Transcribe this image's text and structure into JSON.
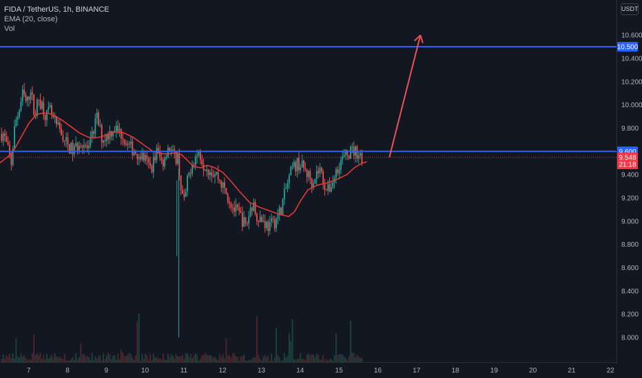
{
  "legend": {
    "symbol": "FIDA / TetherUS, 1h, BINANCE",
    "ema": "EMA (20, close)",
    "vol": "Vol"
  },
  "price_axis": {
    "currency": "USDT",
    "ticks": [
      "10.600",
      "10.400",
      "10.200",
      "10.000",
      "9.800",
      "9.400",
      "9.200",
      "9.000",
      "8.800",
      "8.600",
      "8.400",
      "8.200",
      "8.000"
    ],
    "labels": [
      {
        "text": "10.500",
        "color": "#2962ff"
      },
      {
        "text": "9.600",
        "color": "#2962ff"
      },
      {
        "text": "9.548",
        "countdown": "21:18",
        "color": "#f23645"
      }
    ]
  },
  "time_axis": {
    "ticks": [
      "7",
      "8",
      "9",
      "10",
      "11",
      "12",
      "13",
      "14",
      "15",
      "16",
      "17",
      "18",
      "19",
      "20",
      "21",
      "22"
    ]
  },
  "colors": {
    "background": "#131722",
    "up": "#26a69a",
    "down": "#ef5350",
    "ema": "#e53935",
    "hline": "#2962ff",
    "arrow": "#f0505a"
  },
  "chart_data": {
    "type": "candlestick",
    "symbol": "FIDA/USDT",
    "interval": "1h",
    "ylim": [
      7.93,
      10.74
    ],
    "x_ticks": [
      7,
      8,
      9,
      10,
      11,
      12,
      13,
      14,
      15,
      16,
      17,
      18,
      19,
      20,
      21,
      22
    ],
    "horizontal_lines": [
      10.5,
      9.6
    ],
    "last_price": 9.548,
    "arrow": {
      "from": [
        16.3,
        9.55
      ],
      "to": [
        17.1,
        10.6
      ]
    },
    "close_anchors": [
      [
        6.35,
        9.75
      ],
      [
        6.55,
        9.5
      ],
      [
        6.65,
        9.85
      ],
      [
        6.75,
        9.95
      ],
      [
        6.85,
        10.1
      ],
      [
        6.95,
        10.0
      ],
      [
        7.05,
        10.15
      ],
      [
        7.15,
        9.9
      ],
      [
        7.25,
        10.05
      ],
      [
        7.35,
        10.0
      ],
      [
        7.45,
        9.9
      ],
      [
        7.55,
        9.95
      ],
      [
        7.65,
        9.85
      ],
      [
        7.85,
        9.75
      ],
      [
        8.0,
        9.65
      ],
      [
        8.15,
        9.6
      ],
      [
        8.35,
        9.7
      ],
      [
        8.55,
        9.6
      ],
      [
        8.75,
        9.9
      ],
      [
        8.9,
        9.7
      ],
      [
        9.05,
        9.75
      ],
      [
        9.2,
        9.8
      ],
      [
        9.4,
        9.75
      ],
      [
        9.55,
        9.65
      ],
      [
        9.75,
        9.6
      ],
      [
        9.95,
        9.55
      ],
      [
        10.15,
        9.45
      ],
      [
        10.3,
        9.6
      ],
      [
        10.45,
        9.5
      ],
      [
        10.6,
        9.65
      ],
      [
        10.75,
        9.55
      ],
      [
        10.85,
        9.55
      ],
      [
        10.92,
        9.3
      ],
      [
        11.0,
        9.15
      ],
      [
        11.1,
        9.35
      ],
      [
        11.2,
        9.5
      ],
      [
        11.3,
        9.55
      ],
      [
        11.4,
        9.6
      ],
      [
        11.5,
        9.5
      ],
      [
        11.65,
        9.45
      ],
      [
        11.85,
        9.4
      ],
      [
        12.0,
        9.3
      ],
      [
        12.15,
        9.2
      ],
      [
        12.3,
        9.1
      ],
      [
        12.45,
        9.05
      ],
      [
        12.6,
        8.95
      ],
      [
        12.75,
        9.15
      ],
      [
        12.9,
        9.05
      ],
      [
        13.05,
        9.0
      ],
      [
        13.2,
        8.95
      ],
      [
        13.35,
        9.0
      ],
      [
        13.5,
        9.1
      ],
      [
        13.65,
        9.3
      ],
      [
        13.8,
        9.45
      ],
      [
        13.95,
        9.5
      ],
      [
        14.1,
        9.45
      ],
      [
        14.3,
        9.35
      ],
      [
        14.5,
        9.45
      ],
      [
        14.7,
        9.25
      ],
      [
        14.85,
        9.35
      ],
      [
        15.0,
        9.5
      ],
      [
        15.15,
        9.55
      ],
      [
        15.3,
        9.6
      ],
      [
        15.45,
        9.6
      ],
      [
        15.6,
        9.55
      ]
    ],
    "ema_anchors": [
      [
        6.25,
        9.5
      ],
      [
        6.45,
        9.55
      ],
      [
        6.6,
        9.6
      ],
      [
        6.8,
        9.72
      ],
      [
        7.0,
        9.84
      ],
      [
        7.2,
        9.92
      ],
      [
        7.4,
        9.93
      ],
      [
        7.6,
        9.92
      ],
      [
        7.85,
        9.87
      ],
      [
        8.1,
        9.81
      ],
      [
        8.3,
        9.76
      ],
      [
        8.55,
        9.72
      ],
      [
        8.8,
        9.72
      ],
      [
        9.0,
        9.74
      ],
      [
        9.2,
        9.77
      ],
      [
        9.45,
        9.76
      ],
      [
        9.7,
        9.72
      ],
      [
        9.95,
        9.66
      ],
      [
        10.2,
        9.6
      ],
      [
        10.45,
        9.58
      ],
      [
        10.65,
        9.58
      ],
      [
        10.8,
        9.59
      ],
      [
        10.95,
        9.57
      ],
      [
        11.1,
        9.52
      ],
      [
        11.25,
        9.47
      ],
      [
        11.45,
        9.46
      ],
      [
        11.6,
        9.48
      ],
      [
        11.8,
        9.46
      ],
      [
        12.0,
        9.42
      ],
      [
        12.2,
        9.35
      ],
      [
        12.45,
        9.25
      ],
      [
        12.7,
        9.16
      ],
      [
        12.95,
        9.12
      ],
      [
        13.2,
        9.09
      ],
      [
        13.45,
        9.06
      ],
      [
        13.7,
        9.04
      ],
      [
        13.85,
        9.08
      ],
      [
        14.0,
        9.17
      ],
      [
        14.2,
        9.27
      ],
      [
        14.45,
        9.31
      ],
      [
        14.7,
        9.33
      ],
      [
        14.95,
        9.36
      ],
      [
        15.2,
        9.4
      ],
      [
        15.4,
        9.46
      ],
      [
        15.6,
        9.5
      ],
      [
        15.72,
        9.51
      ]
    ],
    "price_spikes": [
      {
        "x": 10.87,
        "low": 8.0,
        "high": 9.45
      },
      {
        "x": 10.82,
        "low": 8.7,
        "high": 9.35
      }
    ]
  }
}
